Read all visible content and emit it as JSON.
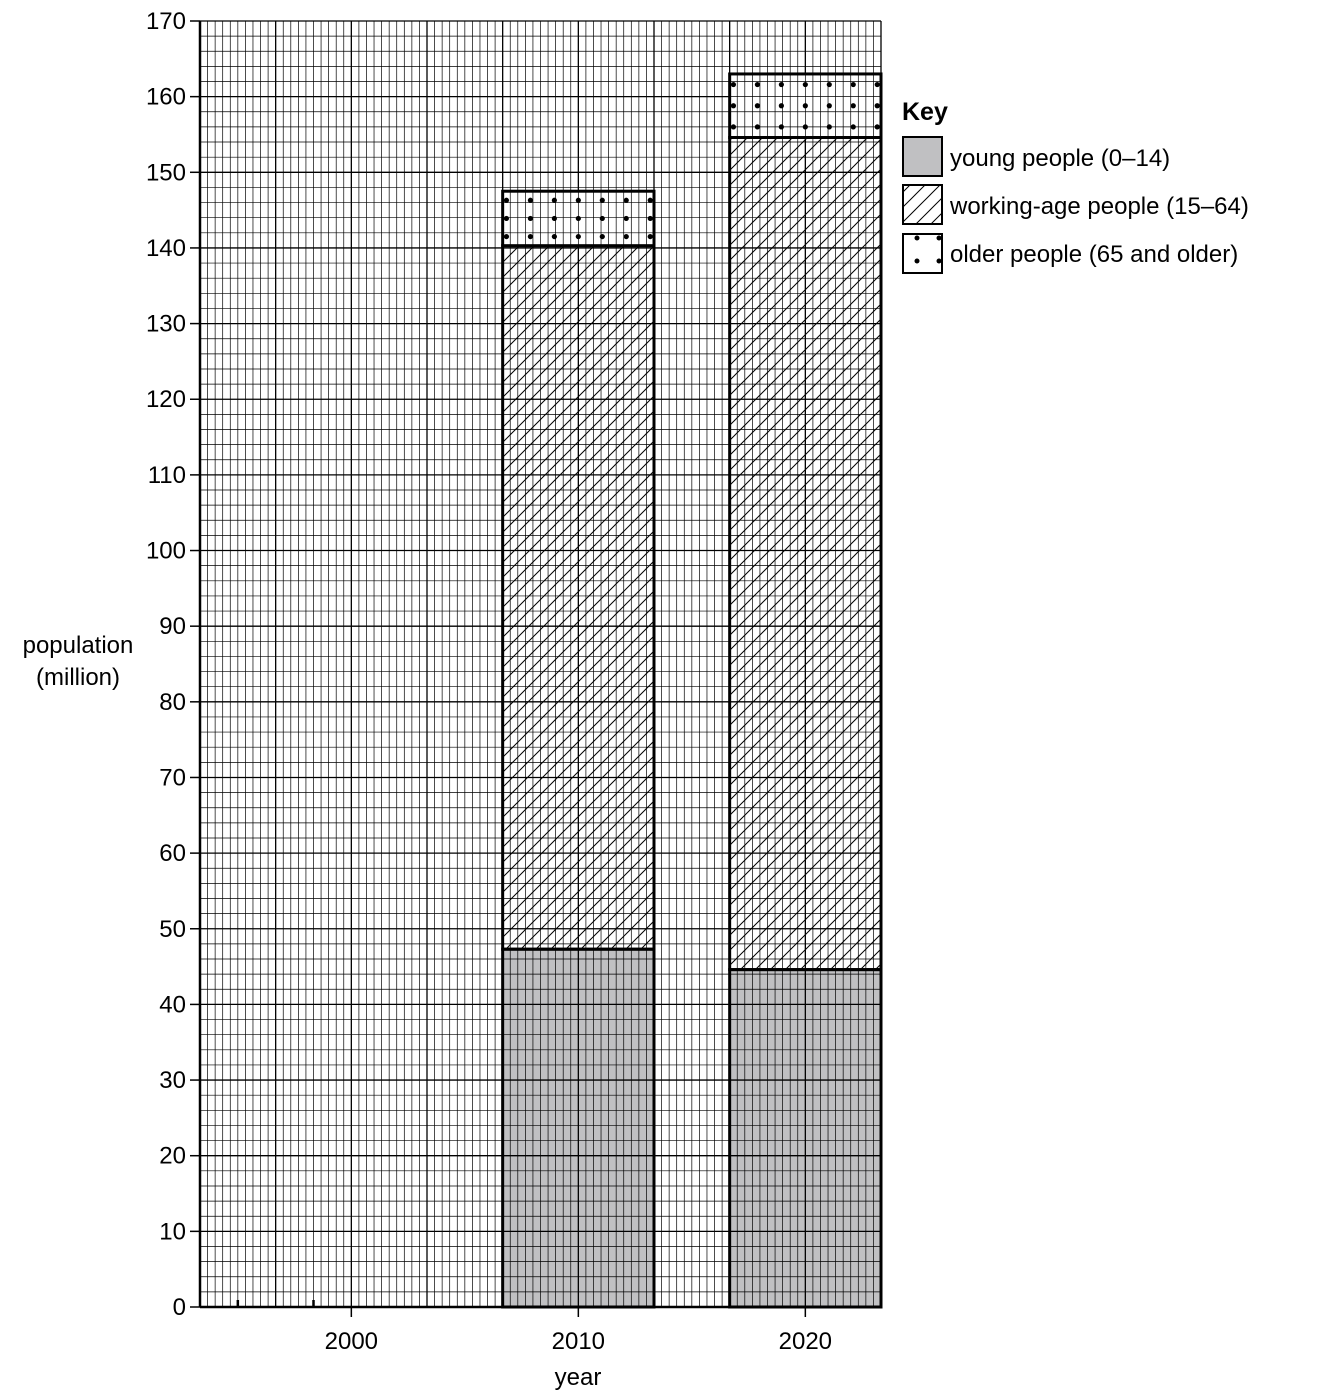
{
  "chart_data": {
    "type": "bar",
    "stacked": true,
    "categories": [
      "2000",
      "2010",
      "2020"
    ],
    "series": [
      {
        "name": "young people (0–14)",
        "values": [
          null,
          47.3,
          44.6
        ],
        "color": "#c0c0c2",
        "pattern": "solid-grey"
      },
      {
        "name": "working-age people (15–64)",
        "values": [
          null,
          93.0,
          110.0
        ],
        "color": "#ffffff",
        "pattern": "diagonal-hatch"
      },
      {
        "name": "older people (65 and older)",
        "values": [
          null,
          7.2,
          8.4
        ],
        "color": "#ffffff",
        "pattern": "dots"
      }
    ],
    "xlabel": "year",
    "ylabel_lines": [
      "population",
      "(million)"
    ],
    "ylim": [
      0,
      170
    ],
    "yticks": [
      "0",
      "10",
      "20",
      "30",
      "40",
      "50",
      "60",
      "70",
      "80",
      "90",
      "100",
      "110",
      "120",
      "130",
      "140",
      "150",
      "160",
      "170"
    ],
    "grid": true,
    "legend": {
      "title": "Key",
      "placement": "right"
    }
  }
}
